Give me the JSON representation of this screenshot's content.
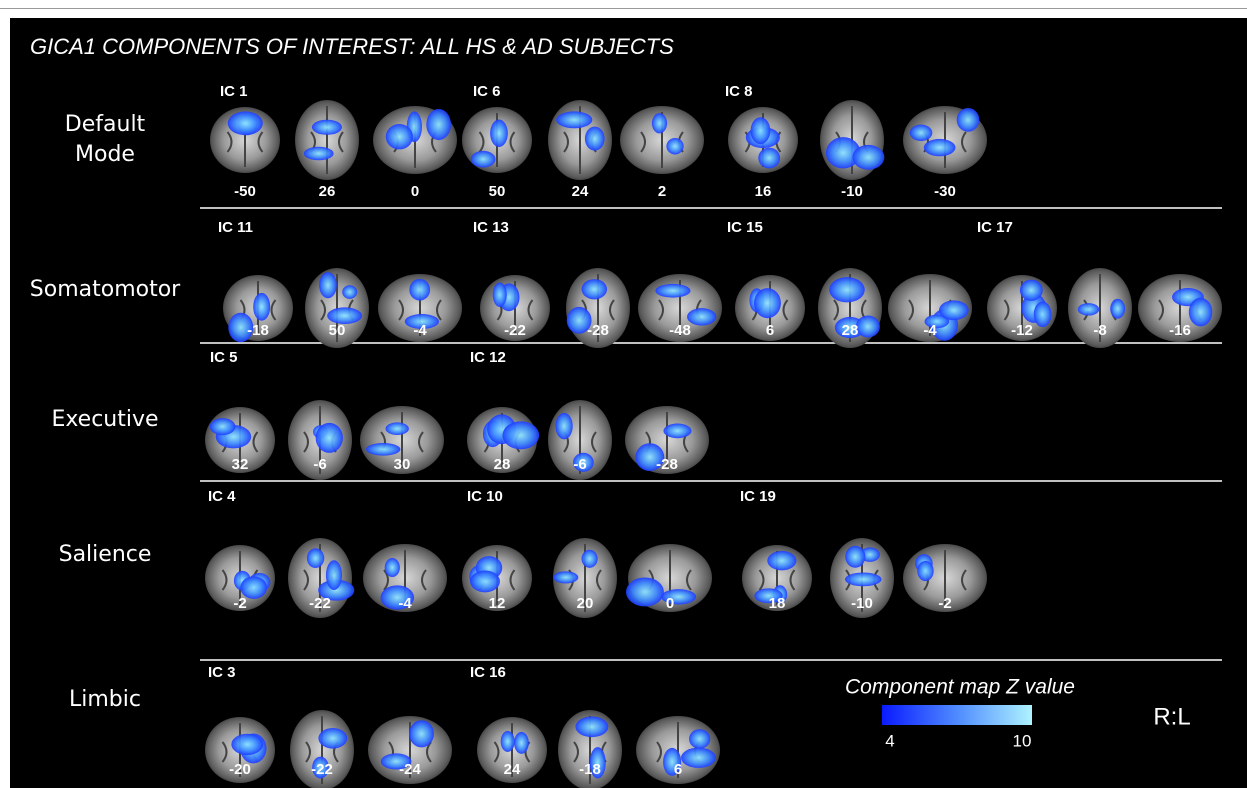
{
  "title": "GICA1 COMPONENTS OF INTEREST: ALL HS & AD SUBJECTS",
  "rows": [
    {
      "label": "Default Mode",
      "components": [
        {
          "name": "IC 1",
          "slices": [
            -50,
            26,
            0
          ]
        },
        {
          "name": "IC 6",
          "slices": [
            50,
            24,
            2
          ]
        },
        {
          "name": "IC 8",
          "slices": [
            16,
            -10,
            -30
          ]
        }
      ]
    },
    {
      "label": "Somatomotor",
      "components": [
        {
          "name": "IC 11",
          "slices": [
            -18,
            50,
            -4
          ]
        },
        {
          "name": "IC 13",
          "slices": [
            -22,
            -28,
            -48
          ]
        },
        {
          "name": "IC 15",
          "slices": [
            6,
            28,
            -4
          ]
        },
        {
          "name": "IC 17",
          "slices": [
            -12,
            -8,
            -16
          ]
        }
      ]
    },
    {
      "label": "Executive",
      "components": [
        {
          "name": "IC 5",
          "slices": [
            32,
            -6,
            30
          ]
        },
        {
          "name": "IC 12",
          "slices": [
            28,
            -6,
            -28
          ]
        }
      ]
    },
    {
      "label": "Salience",
      "components": [
        {
          "name": "IC 4",
          "slices": [
            -2,
            -22,
            -4
          ]
        },
        {
          "name": "IC 10",
          "slices": [
            12,
            20,
            0
          ]
        },
        {
          "name": "IC 19",
          "slices": [
            18,
            -10,
            -2
          ]
        }
      ]
    },
    {
      "label": "Limbic",
      "components": [
        {
          "name": "IC 3",
          "slices": [
            -20,
            -22,
            -24
          ]
        },
        {
          "name": "IC 16",
          "slices": [
            24,
            -18,
            6
          ]
        }
      ]
    }
  ],
  "colorbar": {
    "title": "Component map Z value",
    "ticks": [
      4,
      10
    ]
  },
  "orientation": "R:L"
}
